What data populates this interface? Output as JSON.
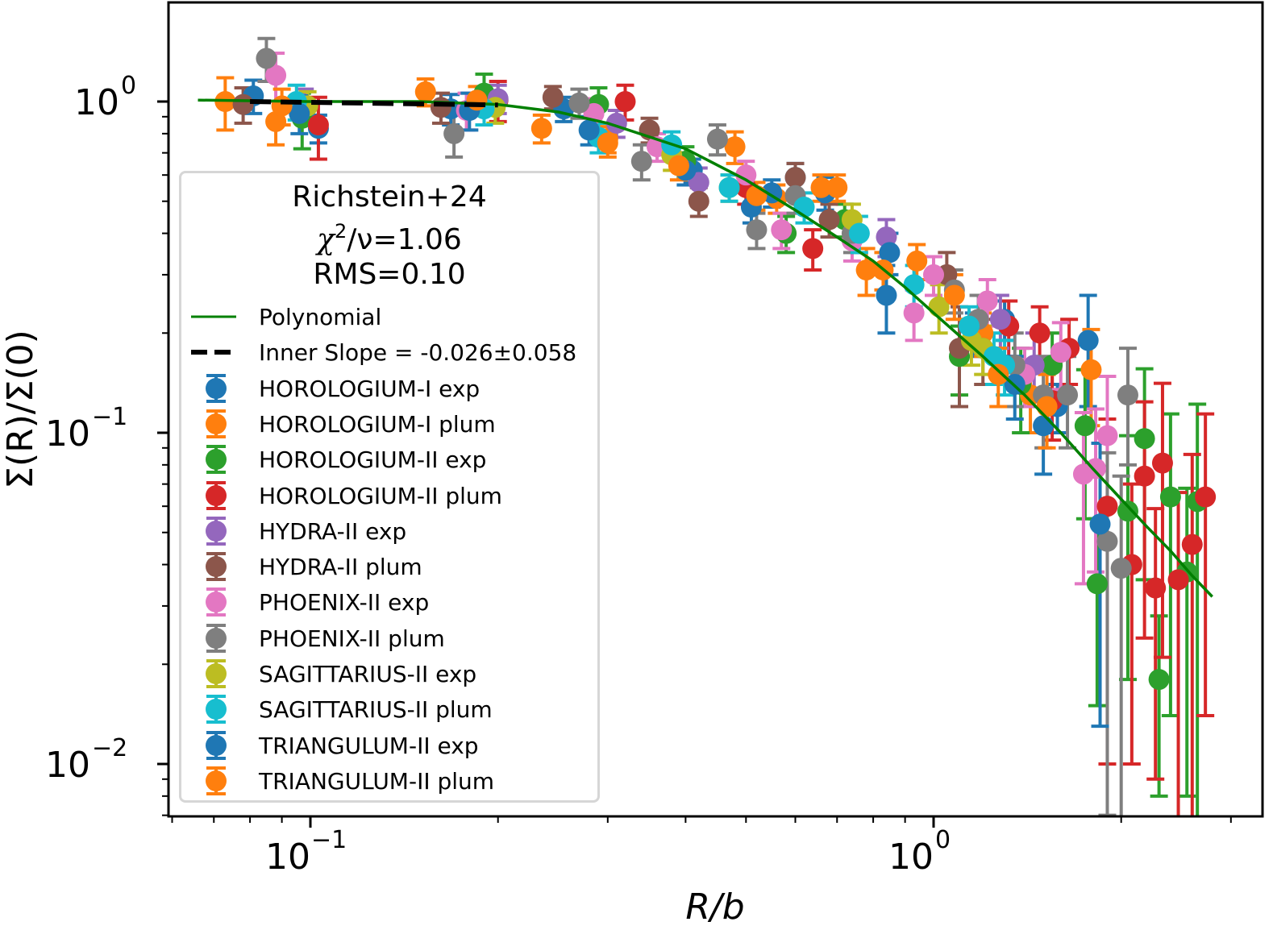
{
  "chart_data": {
    "type": "scatter",
    "title": "",
    "xlabel": "R/b",
    "ylabel": "Σ(R)/Σ(0)",
    "xscale": "log",
    "yscale": "log",
    "xlim": [
      0.059,
      3.37
    ],
    "ylim": [
      0.007,
      1.99
    ],
    "x_major_ticks": [
      {
        "value": 0.1,
        "label_base": "10",
        "label_exp": "−1"
      },
      {
        "value": 1,
        "label_base": "10",
        "label_exp": "0"
      }
    ],
    "y_major_ticks": [
      {
        "value": 1,
        "label_base": "10",
        "label_exp": "0"
      },
      {
        "value": 0.1,
        "label_base": "10",
        "label_exp": "−1"
      },
      {
        "value": 0.01,
        "label_base": "10",
        "label_exp": "−2"
      }
    ],
    "grid": false,
    "legend": {
      "placement": "left",
      "title_lines": [
        "Richstein+24",
        "χ²/ν=1.06",
        "RMS=0.10"
      ],
      "title_main": "Richstein+24",
      "chi_prefix": "χ",
      "chi_exp": "2",
      "chi_suffix": "/ν=1.06",
      "rms": "RMS=0.10",
      "line_entries": [
        {
          "label": "Polynomial",
          "color": "#008000",
          "style": "solid"
        },
        {
          "label": "Inner Slope = -0.026±0.058",
          "color": "#000000",
          "style": "dashed"
        }
      ]
    },
    "fit_polynomial": {
      "name": "Polynomial",
      "color": "#008000",
      "points": [
        [
          0.066,
          1.01
        ],
        [
          0.1,
          1.0
        ],
        [
          0.15,
          1.0
        ],
        [
          0.2,
          0.98
        ],
        [
          0.25,
          0.93
        ],
        [
          0.3,
          0.86
        ],
        [
          0.4,
          0.72
        ],
        [
          0.5,
          0.58
        ],
        [
          0.6,
          0.47
        ],
        [
          0.7,
          0.39
        ],
        [
          0.8,
          0.33
        ],
        [
          0.9,
          0.275
        ],
        [
          1.0,
          0.23
        ],
        [
          1.2,
          0.17
        ],
        [
          1.4,
          0.13
        ],
        [
          1.6,
          0.1
        ],
        [
          1.8,
          0.078
        ],
        [
          2.0,
          0.063
        ],
        [
          2.2,
          0.052
        ],
        [
          2.4,
          0.044
        ],
        [
          2.6,
          0.037
        ],
        [
          2.8,
          0.032
        ]
      ]
    },
    "inner_slope": {
      "name": "Inner Slope = -0.026±0.058",
      "slope": -0.026,
      "slope_err": 0.058,
      "color": "#000000",
      "x_range": [
        0.08,
        0.2
      ],
      "y_at_start": 1.0
    },
    "series": [
      {
        "name": "HOROLOGIUM-I exp",
        "color": "#1f77b4",
        "points": [
          [
            0.081,
            1.04,
            0.12,
            0.12
          ],
          [
            0.103,
            0.83,
            0.08,
            0.08
          ],
          [
            0.168,
            0.95,
            0.1,
            0.1
          ],
          [
            0.255,
            0.95,
            0.08,
            0.08
          ],
          [
            0.41,
            0.62,
            0.05,
            0.05
          ],
          [
            0.51,
            0.48,
            0.05,
            0.05
          ],
          [
            0.6,
            0.59,
            0.06,
            0.06
          ],
          [
            0.67,
            0.53,
            0.06,
            0.06
          ],
          [
            0.84,
            0.26,
            0.06,
            0.06
          ],
          [
            1.16,
            0.2,
            0.03,
            0.03
          ],
          [
            1.3,
            0.22,
            0.03,
            0.03
          ],
          [
            1.5,
            0.105,
            0.03,
            0.03
          ],
          [
            1.58,
            0.12,
            0.02,
            0.02
          ],
          [
            1.77,
            0.19,
            0.07,
            0.07
          ]
        ]
      },
      {
        "name": "HOROLOGIUM-I plum",
        "color": "#ff7f0e",
        "points": [
          [
            0.073,
            1.0,
            0.18,
            0.18
          ],
          [
            0.088,
            0.87,
            0.13,
            0.13
          ],
          [
            0.153,
            1.07,
            0.1,
            0.1
          ],
          [
            0.235,
            0.83,
            0.08,
            0.08
          ],
          [
            0.3,
            0.77,
            0.07,
            0.07
          ],
          [
            0.48,
            0.73,
            0.08,
            0.08
          ],
          [
            0.56,
            0.51,
            0.05,
            0.05
          ],
          [
            0.66,
            0.55,
            0.05,
            0.05
          ],
          [
            0.78,
            0.31,
            0.05,
            0.05
          ],
          [
            0.94,
            0.33,
            0.04,
            0.04
          ],
          [
            1.2,
            0.2,
            0.03,
            0.03
          ],
          [
            1.43,
            0.13,
            0.03,
            0.03
          ],
          [
            1.79,
            0.155,
            0.05,
            0.05
          ]
        ]
      },
      {
        "name": "HOROLOGIUM-II exp",
        "color": "#2ca02c",
        "points": [
          [
            0.097,
            0.89,
            0.17,
            0.17
          ],
          [
            0.19,
            1.06,
            0.15,
            0.15
          ],
          [
            0.29,
            0.98,
            0.12,
            0.12
          ],
          [
            0.4,
            0.66,
            0.07,
            0.07
          ],
          [
            0.58,
            0.4,
            0.05,
            0.05
          ],
          [
            0.72,
            0.44,
            0.05,
            0.05
          ],
          [
            1.1,
            0.17,
            0.04,
            0.04
          ],
          [
            1.38,
            0.14,
            0.04,
            0.04
          ],
          [
            1.55,
            0.16,
            0.04,
            0.04
          ],
          [
            1.75,
            0.105,
            0.05,
            0.05
          ],
          [
            1.83,
            0.035,
            0.02,
            0.02
          ],
          [
            2.05,
            0.058,
            0.04,
            0.04
          ],
          [
            2.18,
            0.096,
            0.06,
            0.06
          ],
          [
            2.3,
            0.018,
            0.01,
            0.01
          ],
          [
            2.4,
            0.064,
            0.05,
            0.05
          ],
          [
            2.55,
            0.038,
            0.03,
            0.03
          ],
          [
            2.65,
            0.062,
            0.06,
            0.06
          ]
        ]
      },
      {
        "name": "HOROLOGIUM-II plum",
        "color": "#d62728",
        "points": [
          [
            0.103,
            0.85,
            0.18,
            0.18
          ],
          [
            0.2,
            1.01,
            0.14,
            0.14
          ],
          [
            0.32,
            1.0,
            0.12,
            0.12
          ],
          [
            0.5,
            0.55,
            0.06,
            0.06
          ],
          [
            0.64,
            0.36,
            0.05,
            0.05
          ],
          [
            1.32,
            0.21,
            0.04,
            0.04
          ],
          [
            1.48,
            0.2,
            0.04,
            0.04
          ],
          [
            1.55,
            0.125,
            0.03,
            0.03
          ],
          [
            1.65,
            0.18,
            0.04,
            0.04
          ],
          [
            1.9,
            0.06,
            0.05,
            0.05
          ],
          [
            2.08,
            0.04,
            0.03,
            0.03
          ],
          [
            2.18,
            0.074,
            0.05,
            0.05
          ],
          [
            2.27,
            0.034,
            0.025,
            0.025
          ],
          [
            2.33,
            0.081,
            0.06,
            0.06
          ],
          [
            2.47,
            0.036,
            0.03,
            0.03
          ],
          [
            2.6,
            0.046,
            0.04,
            0.04
          ],
          [
            2.73,
            0.064,
            0.05,
            0.05
          ]
        ]
      },
      {
        "name": "HYDRA-II exp",
        "color": "#9467bd",
        "points": [
          [
            0.098,
            0.97,
            0.12,
            0.12
          ],
          [
            0.2,
            1.02,
            0.1,
            0.1
          ],
          [
            0.31,
            0.86,
            0.08,
            0.08
          ],
          [
            0.42,
            0.57,
            0.06,
            0.06
          ],
          [
            0.84,
            0.39,
            0.05,
            0.05
          ],
          [
            1.28,
            0.22,
            0.04,
            0.04
          ],
          [
            1.45,
            0.16,
            0.04,
            0.04
          ]
        ]
      },
      {
        "name": "HYDRA-II plum",
        "color": "#8c564b",
        "points": [
          [
            0.078,
            0.98,
            0.12,
            0.12
          ],
          [
            0.162,
            0.96,
            0.1,
            0.1
          ],
          [
            0.245,
            1.03,
            0.08,
            0.08
          ],
          [
            0.35,
            0.82,
            0.07,
            0.07
          ],
          [
            0.42,
            0.5,
            0.05,
            0.05
          ],
          [
            0.6,
            0.59,
            0.06,
            0.06
          ],
          [
            0.68,
            0.44,
            0.05,
            0.05
          ],
          [
            1.05,
            0.3,
            0.05,
            0.05
          ],
          [
            1.1,
            0.18,
            0.06,
            0.06
          ],
          [
            1.2,
            0.18,
            0.04,
            0.04
          ]
        ]
      },
      {
        "name": "PHOENIX-II exp",
        "color": "#e377c2",
        "points": [
          [
            0.088,
            1.2,
            0.2,
            0.2
          ],
          [
            0.178,
            0.94,
            0.12,
            0.12
          ],
          [
            0.285,
            0.92,
            0.1,
            0.1
          ],
          [
            0.36,
            0.73,
            0.07,
            0.07
          ],
          [
            0.5,
            0.6,
            0.06,
            0.06
          ],
          [
            0.57,
            0.41,
            0.05,
            0.05
          ],
          [
            0.74,
            0.38,
            0.05,
            0.05
          ],
          [
            0.93,
            0.23,
            0.04,
            0.04
          ],
          [
            1.0,
            0.3,
            0.04,
            0.04
          ],
          [
            1.22,
            0.25,
            0.04,
            0.04
          ],
          [
            1.4,
            0.15,
            0.03,
            0.03
          ],
          [
            1.6,
            0.175,
            0.04,
            0.04
          ],
          [
            1.74,
            0.075,
            0.04,
            0.04
          ],
          [
            1.82,
            0.078,
            0.04,
            0.04
          ],
          [
            1.9,
            0.098,
            0.05,
            0.05
          ]
        ]
      },
      {
        "name": "PHOENIX-II plum",
        "color": "#7f7f7f",
        "points": [
          [
            0.085,
            1.35,
            0.2,
            0.2
          ],
          [
            0.17,
            0.8,
            0.12,
            0.12
          ],
          [
            0.27,
            0.99,
            0.1,
            0.1
          ],
          [
            0.34,
            0.66,
            0.08,
            0.08
          ],
          [
            0.45,
            0.77,
            0.08,
            0.08
          ],
          [
            0.52,
            0.41,
            0.05,
            0.05
          ],
          [
            0.6,
            0.52,
            0.06,
            0.06
          ],
          [
            0.74,
            0.4,
            0.05,
            0.05
          ],
          [
            1.08,
            0.27,
            0.04,
            0.04
          ],
          [
            1.18,
            0.22,
            0.04,
            0.04
          ],
          [
            1.35,
            0.16,
            0.04,
            0.04
          ],
          [
            1.5,
            0.13,
            0.04,
            0.04
          ],
          [
            1.64,
            0.13,
            0.04,
            0.04
          ],
          [
            1.9,
            0.047,
            0.04,
            0.04
          ],
          [
            2.0,
            0.039,
            0.035,
            0.035
          ],
          [
            2.05,
            0.13,
            0.05,
            0.05
          ]
        ]
      },
      {
        "name": "SAGITTARIUS-II exp",
        "color": "#bcbd22",
        "points": [
          [
            0.099,
            0.97,
            0.1,
            0.1
          ],
          [
            0.198,
            0.96,
            0.1,
            0.1
          ],
          [
            0.38,
            0.69,
            0.07,
            0.07
          ],
          [
            0.47,
            0.55,
            0.05,
            0.05
          ],
          [
            0.74,
            0.44,
            0.05,
            0.05
          ],
          [
            1.02,
            0.24,
            0.04,
            0.04
          ],
          [
            1.15,
            0.19,
            0.03,
            0.03
          ],
          [
            1.2,
            0.18,
            0.03,
            0.03
          ]
        ]
      },
      {
        "name": "SAGITTARIUS-II plum",
        "color": "#17becf",
        "points": [
          [
            0.095,
            1.0,
            0.12,
            0.12
          ],
          [
            0.19,
            0.95,
            0.1,
            0.1
          ],
          [
            0.29,
            0.78,
            0.08,
            0.08
          ],
          [
            0.38,
            0.74,
            0.07,
            0.07
          ],
          [
            0.47,
            0.55,
            0.05,
            0.05
          ],
          [
            0.62,
            0.48,
            0.05,
            0.05
          ],
          [
            0.76,
            0.4,
            0.05,
            0.05
          ],
          [
            0.93,
            0.28,
            0.04,
            0.04
          ],
          [
            1.14,
            0.21,
            0.03,
            0.03
          ],
          [
            1.25,
            0.17,
            0.03,
            0.03
          ],
          [
            1.3,
            0.16,
            0.03,
            0.03
          ]
        ]
      },
      {
        "name": "TRIANGULUM-II exp",
        "color": "#1f77b4",
        "points": [
          [
            0.096,
            0.92,
            0.12,
            0.12
          ],
          [
            0.18,
            0.94,
            0.12,
            0.12
          ],
          [
            0.28,
            0.82,
            0.08,
            0.08
          ],
          [
            0.4,
            0.62,
            0.06,
            0.06
          ],
          [
            0.55,
            0.53,
            0.05,
            0.05
          ],
          [
            0.85,
            0.35,
            0.05,
            0.05
          ],
          [
            1.35,
            0.14,
            0.03,
            0.03
          ],
          [
            1.85,
            0.053,
            0.04,
            0.04
          ]
        ]
      },
      {
        "name": "TRIANGULUM-II plum",
        "color": "#ff7f0e",
        "points": [
          [
            0.09,
            0.97,
            0.12,
            0.12
          ],
          [
            0.185,
            1.01,
            0.1,
            0.1
          ],
          [
            0.3,
            0.75,
            0.07,
            0.07
          ],
          [
            0.39,
            0.64,
            0.06,
            0.06
          ],
          [
            0.52,
            0.52,
            0.05,
            0.05
          ],
          [
            0.7,
            0.55,
            0.05,
            0.05
          ],
          [
            0.83,
            0.31,
            0.04,
            0.04
          ],
          [
            1.08,
            0.26,
            0.04,
            0.04
          ],
          [
            1.27,
            0.15,
            0.03,
            0.03
          ],
          [
            1.52,
            0.12,
            0.03,
            0.03
          ]
        ]
      }
    ]
  }
}
